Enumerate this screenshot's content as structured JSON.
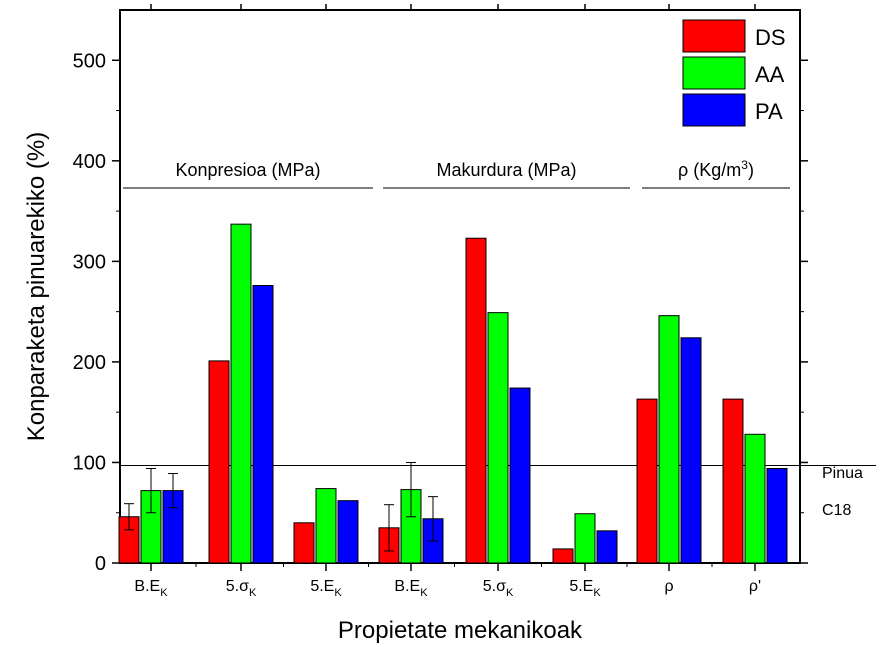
{
  "chart_data": {
    "type": "bar",
    "xlabel": "Propietate mekanikoak",
    "ylabel": "Konparaketa pinuarekiko  (%)",
    "ylim": [
      0,
      550
    ],
    "yticks": [
      0,
      100,
      200,
      300,
      400,
      500
    ],
    "categories": [
      {
        "base": "B.E",
        "sym": "",
        "sub": "K"
      },
      {
        "base": "5.",
        "sym": "σ",
        "sub": "K"
      },
      {
        "base": "5.E",
        "sym": "",
        "sub": "K"
      },
      {
        "base": "B.E",
        "sym": "",
        "sub": "K"
      },
      {
        "base": "5.",
        "sym": "σ",
        "sub": "K"
      },
      {
        "base": "5.E",
        "sym": "",
        "sub": "K"
      },
      {
        "base": "",
        "sym": "ρ",
        "sub": ""
      },
      {
        "base": "",
        "sym": "ρ'",
        "sub": ""
      }
    ],
    "series": [
      {
        "name": "DS",
        "color": "#ff0000",
        "values": [
          46,
          201,
          40,
          35,
          323,
          14,
          163,
          163
        ],
        "errors": [
          13,
          null,
          null,
          23,
          null,
          null,
          null,
          null
        ]
      },
      {
        "name": "AA",
        "color": "#00ff00",
        "values": [
          72,
          337,
          74,
          73,
          249,
          49,
          246,
          128
        ],
        "errors": [
          22,
          null,
          null,
          27,
          null,
          null,
          null,
          null
        ]
      },
      {
        "name": "PA",
        "color": "#0000ff",
        "values": [
          72,
          276,
          62,
          44,
          174,
          32,
          224,
          94
        ],
        "errors": [
          17,
          null,
          null,
          22,
          null,
          null,
          null,
          null
        ]
      }
    ],
    "groups": [
      {
        "label": "Konpresioa (MPa)",
        "categories": [
          0,
          1,
          2
        ]
      },
      {
        "label": "Makurdura (MPa)",
        "categories": [
          3,
          4,
          5
        ]
      },
      {
        "label": "ρ (Kg/m",
        "sup": "3",
        "label_end": ")",
        "categories": [
          6,
          7
        ]
      }
    ],
    "reference_line": {
      "value": 97,
      "label_line1": "Pinua",
      "label_line2": "C18"
    },
    "legend": {
      "position": "top-right"
    },
    "grid": false
  }
}
